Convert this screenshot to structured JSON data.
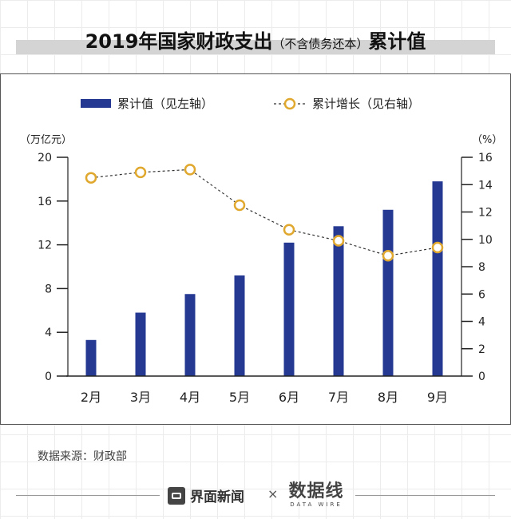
{
  "header": {
    "title_main": "2019年国家财政支出",
    "title_paren": "（不含债务还本）",
    "title_tail": "累计值"
  },
  "legend": {
    "bar_label": "累计值（见左轴）",
    "line_label": "累计增长（见右轴）"
  },
  "chart_data": {
    "type": "bar",
    "categories": [
      "2月",
      "3月",
      "4月",
      "5月",
      "6月",
      "7月",
      "8月",
      "9月"
    ],
    "series": [
      {
        "name": "累计值（见左轴）",
        "type": "bar",
        "axis": "left",
        "values": [
          3.3,
          5.8,
          7.5,
          9.2,
          12.2,
          13.7,
          15.2,
          17.8
        ]
      },
      {
        "name": "累计增长（见右轴）",
        "type": "line",
        "axis": "right",
        "values": [
          14.5,
          14.9,
          15.1,
          12.5,
          10.7,
          9.9,
          8.8,
          9.4
        ]
      }
    ],
    "left_axis": {
      "label": "（万亿元）",
      "ylim": [
        0,
        20
      ],
      "ticks": [
        0,
        4,
        8,
        12,
        16,
        20
      ]
    },
    "right_axis": {
      "label": "（%）",
      "ylim": [
        0,
        16
      ],
      "ticks": [
        0,
        2,
        4,
        6,
        8,
        10,
        12,
        14,
        16
      ]
    },
    "grid": false,
    "legend_position": "top",
    "colors": {
      "bar": "#253993",
      "line": "#333333",
      "marker": "#e0a82e"
    }
  },
  "source": {
    "text": "数据来源：财政部"
  },
  "footer": {
    "brand": "界面新闻",
    "times": "×",
    "partner": "数据线",
    "partner_sub": "DATA WIRE"
  },
  "icons": {
    "logo": "jiemian-logo-icon"
  }
}
